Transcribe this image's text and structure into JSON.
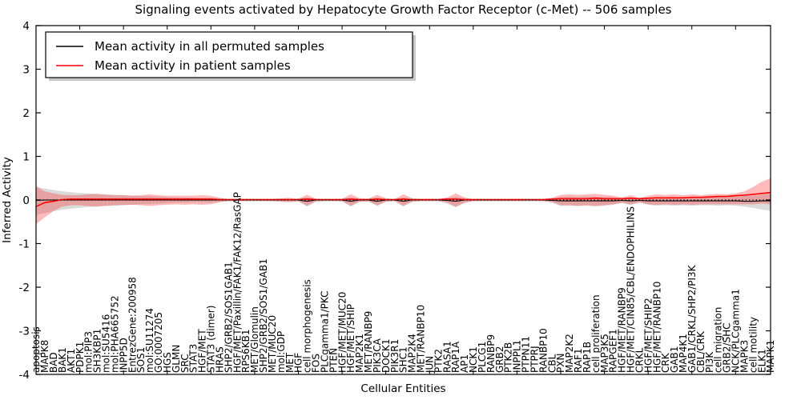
{
  "title": "Signaling events activated by Hepatocyte Growth Factor Receptor (c-Met) -- 506 samples",
  "axes": {
    "xlabel": "Cellular Entities",
    "ylabel": "Inferred Activity"
  },
  "legend": {
    "entries": [
      {
        "label": "Mean activity in all permuted samples",
        "color": "#000000"
      },
      {
        "label": "Mean activity in patient samples",
        "color": "#ff0000"
      }
    ]
  },
  "colors": {
    "patient_line": "#ff0000",
    "patient_band": "#ff2a2a",
    "permuted_line": "#000000",
    "permuted_band": "#888888",
    "frame": "#000000"
  },
  "chart_data": {
    "type": "line",
    "title": "Signaling events activated by Hepatocyte Growth Factor Receptor (c-Met) -- 506 samples",
    "xlabel": "Cellular Entities",
    "ylabel": "Inferred Activity",
    "ylim": [
      -4,
      4
    ],
    "yticks": [
      -4,
      -3,
      -2,
      -1,
      0,
      1,
      2,
      3,
      4
    ],
    "grid": false,
    "legend_position": "upper left",
    "zero_line": {
      "y": 0,
      "style": "dotted",
      "color": "#000000"
    },
    "categories": [
      "apoptosis",
      "MAPK8",
      "BAD",
      "BAK1",
      "AKT1",
      "PDPK1",
      "mol:PIP3",
      "SH3KBP1",
      "mol:SU5416",
      "mol:PHA665752",
      "INPP5D",
      "EntrezGene:200958",
      "SOS1",
      "mol:SU11274",
      "GO:0007205",
      "HGS",
      "GLMN",
      "SRC",
      "STAT3",
      "HGF/MET",
      "STAT3 (dimer)",
      "HRAS",
      "SHP2/GRB2/SOS1GAB1",
      "HGF/MET/Paxillin/FAK1/FAK12/RasGAP",
      "RPS6KB1",
      "MET/Glomulin",
      "SHP2/GRB2/SOS1/GAB1",
      "MET/MUC20",
      "mol:GDP",
      "MET",
      "HGF",
      "cell morphogenesis",
      "FOS",
      "PLCgamma1/PKC",
      "PTEN",
      "HGF/MET/MUC20",
      "HGF/MET/SHIP",
      "MAP2K1",
      "MET/RANBP9",
      "PIK3CA",
      "DOCK1",
      "PIK3R1",
      "SHC1",
      "MAP2K4",
      "MET/RANBP10",
      "JUN",
      "PTK2",
      "RASA1",
      "RAP1A",
      "AP1",
      "NCK1",
      "PLCG1",
      "RANBP9",
      "GRB2",
      "PTK2B",
      "INPPL1",
      "PTPN11",
      "PTPRJ",
      "RANBP10",
      "CBL",
      "PXN",
      "MAP2K2",
      "RAF1",
      "RAP1B",
      "cell proliferation",
      "MAP3K5",
      "RAPGEF1",
      "HGF/MET/RANBP9",
      "HGF/MET/CIN85/CBL/ENDOPHILINS",
      "CRKL",
      "HGF/MET/SHIP2",
      "HGF/MET/RANBP10",
      "CRK",
      "GAB1",
      "MAP4K1",
      "GAB1/CRKL/SHP2/PI3K",
      "CBL/CRK",
      "PI3K",
      "cell migration",
      "GRB2/SHC",
      "NCK/PLCgamma1",
      "MAPK3",
      "cell motility",
      "ELK1",
      "MAPK1"
    ],
    "series": [
      {
        "name": "Mean activity in all permuted samples",
        "color": "#000000",
        "values": [
          -0.01,
          0,
          0,
          0,
          0,
          0,
          0,
          0,
          0,
          0,
          0,
          0,
          0,
          0,
          0,
          0,
          0,
          0,
          0,
          0,
          0,
          0,
          0,
          0,
          0,
          0,
          0,
          0,
          0,
          0,
          0,
          -0.03,
          0,
          0,
          0,
          0,
          -0.03,
          0,
          0,
          -0.03,
          0,
          0,
          -0.03,
          0,
          0,
          0,
          0,
          -0.01,
          -0.03,
          0,
          0,
          0,
          0,
          0,
          0,
          0,
          0,
          0,
          0,
          -0.01,
          -0.02,
          -0.02,
          -0.02,
          -0.02,
          -0.02,
          -0.02,
          -0.02,
          -0.01,
          -0.02,
          -0.01,
          -0.02,
          -0.02,
          -0.02,
          -0.02,
          -0.02,
          -0.02,
          -0.02,
          -0.02,
          -0.02,
          -0.02,
          -0.02,
          -0.03,
          -0.03,
          -0.02,
          -0.02
        ]
      },
      {
        "name": "Mean activity in patient samples",
        "color": "#ff0000",
        "values": [
          -0.15,
          -0.06,
          -0.03,
          0.01,
          0.02,
          0.02,
          0.02,
          0.02,
          0.02,
          0.02,
          0.02,
          0.02,
          0.02,
          0.02,
          0.02,
          0.02,
          0.02,
          0.02,
          0.02,
          0.02,
          0.02,
          0.01,
          0.01,
          0.01,
          0.01,
          0.01,
          0.01,
          0.01,
          0.01,
          0.01,
          0.01,
          0.02,
          0.01,
          0.01,
          0.01,
          0.01,
          0.02,
          0.01,
          0.01,
          0.02,
          0.01,
          0.01,
          0.02,
          0.01,
          0.01,
          0.01,
          0.01,
          0.02,
          0.02,
          0.01,
          0.01,
          0.01,
          0.01,
          0.01,
          0.01,
          0.01,
          0.01,
          0.01,
          0.01,
          0.02,
          0.03,
          0.03,
          0.03,
          0.03,
          0.04,
          0.03,
          0.03,
          0.03,
          0.04,
          0.03,
          0.04,
          0.05,
          0.05,
          0.05,
          0.05,
          0.06,
          0.06,
          0.07,
          0.08,
          0.08,
          0.1,
          0.11,
          0.13,
          0.15,
          0.17
        ]
      }
    ],
    "bands": [
      {
        "name": "permuted-confidence-band",
        "color": "#888888",
        "opacity": 0.3,
        "upper": [
          0.3,
          0.26,
          0.23,
          0.2,
          0.18,
          0.16,
          0.15,
          0.14,
          0.13,
          0.12,
          0.11,
          0.1,
          0.09,
          0.09,
          0.08,
          0.07,
          0.06,
          0.06,
          0.05,
          0.05,
          0.05,
          0.04,
          0.03,
          0.03,
          0.03,
          0.03,
          0.03,
          0.03,
          0.03,
          0.03,
          0.03,
          0.06,
          0.03,
          0.03,
          0.03,
          0.03,
          0.06,
          0.03,
          0.03,
          0.06,
          0.03,
          0.03,
          0.06,
          0.03,
          0.03,
          0.03,
          0.03,
          0.04,
          0.07,
          0.04,
          0.03,
          0.03,
          0.03,
          0.03,
          0.03,
          0.03,
          0.03,
          0.03,
          0.03,
          0.04,
          0.07,
          0.08,
          0.07,
          0.08,
          0.08,
          0.07,
          0.06,
          0.04,
          0.06,
          0.04,
          0.06,
          0.07,
          0.06,
          0.07,
          0.06,
          0.07,
          0.06,
          0.07,
          0.08,
          0.07,
          0.08,
          0.09,
          0.1,
          0.12,
          0.14
        ],
        "lower": [
          -0.35,
          -0.3,
          -0.26,
          -0.22,
          -0.2,
          -0.18,
          -0.16,
          -0.15,
          -0.14,
          -0.13,
          -0.12,
          -0.11,
          -0.1,
          -0.09,
          -0.08,
          -0.07,
          -0.06,
          -0.06,
          -0.05,
          -0.05,
          -0.05,
          -0.04,
          -0.03,
          -0.03,
          -0.03,
          -0.03,
          -0.03,
          -0.03,
          -0.03,
          -0.03,
          -0.03,
          -0.15,
          -0.04,
          -0.03,
          -0.03,
          -0.03,
          -0.15,
          -0.04,
          -0.03,
          -0.14,
          -0.04,
          -0.03,
          -0.15,
          -0.04,
          -0.03,
          -0.03,
          -0.03,
          -0.08,
          -0.17,
          -0.07,
          -0.03,
          -0.03,
          -0.03,
          -0.03,
          -0.03,
          -0.03,
          -0.03,
          -0.03,
          -0.03,
          -0.06,
          -0.14,
          -0.13,
          -0.14,
          -0.13,
          -0.15,
          -0.13,
          -0.11,
          -0.07,
          -0.12,
          -0.06,
          -0.11,
          -0.13,
          -0.12,
          -0.13,
          -0.12,
          -0.13,
          -0.12,
          -0.12,
          -0.13,
          -0.12,
          -0.13,
          -0.15,
          -0.18,
          -0.22,
          -0.25
        ]
      },
      {
        "name": "patient-confidence-band",
        "color": "#ff2a2a",
        "opacity": 0.32,
        "upper": [
          0.32,
          0.2,
          0.15,
          0.12,
          0.11,
          0.11,
          0.13,
          0.14,
          0.12,
          0.11,
          0.11,
          0.1,
          0.11,
          0.13,
          0.11,
          0.1,
          0.1,
          0.1,
          0.1,
          0.11,
          0.1,
          0.05,
          0.02,
          0.02,
          0.02,
          0.02,
          0.02,
          0.02,
          0.04,
          0.05,
          0.03,
          0.12,
          0.03,
          0.02,
          0.02,
          0.03,
          0.13,
          0.04,
          0.03,
          0.12,
          0.04,
          0.02,
          0.13,
          0.04,
          0.02,
          0.02,
          0.02,
          0.06,
          0.15,
          0.06,
          0.02,
          0.02,
          0.02,
          0.02,
          0.02,
          0.02,
          0.02,
          0.02,
          0.02,
          0.05,
          0.12,
          0.13,
          0.12,
          0.13,
          0.14,
          0.12,
          0.1,
          0.06,
          0.11,
          0.05,
          0.1,
          0.13,
          0.11,
          0.13,
          0.11,
          0.13,
          0.11,
          0.13,
          0.14,
          0.13,
          0.15,
          0.2,
          0.3,
          0.42,
          0.5
        ],
        "lower": [
          -0.55,
          -0.4,
          -0.25,
          -0.15,
          -0.12,
          -0.12,
          -0.14,
          -0.15,
          -0.13,
          -0.12,
          -0.11,
          -0.11,
          -0.12,
          -0.14,
          -0.12,
          -0.11,
          -0.1,
          -0.11,
          -0.1,
          -0.11,
          -0.1,
          -0.05,
          -0.02,
          -0.02,
          -0.02,
          -0.02,
          -0.02,
          -0.02,
          -0.04,
          -0.05,
          -0.03,
          -0.13,
          -0.03,
          -0.02,
          -0.02,
          -0.03,
          -0.13,
          -0.04,
          -0.03,
          -0.12,
          -0.04,
          -0.02,
          -0.13,
          -0.04,
          -0.02,
          -0.02,
          -0.02,
          -0.06,
          -0.15,
          -0.06,
          -0.02,
          -0.02,
          -0.02,
          -0.02,
          -0.02,
          -0.02,
          -0.02,
          -0.02,
          -0.02,
          -0.05,
          -0.12,
          -0.12,
          -0.13,
          -0.12,
          -0.13,
          -0.12,
          -0.1,
          -0.06,
          -0.1,
          -0.05,
          -0.1,
          -0.11,
          -0.1,
          -0.11,
          -0.1,
          -0.11,
          -0.1,
          -0.1,
          -0.1,
          -0.1,
          -0.1,
          -0.1,
          -0.1,
          -0.08,
          -0.1
        ]
      }
    ]
  }
}
